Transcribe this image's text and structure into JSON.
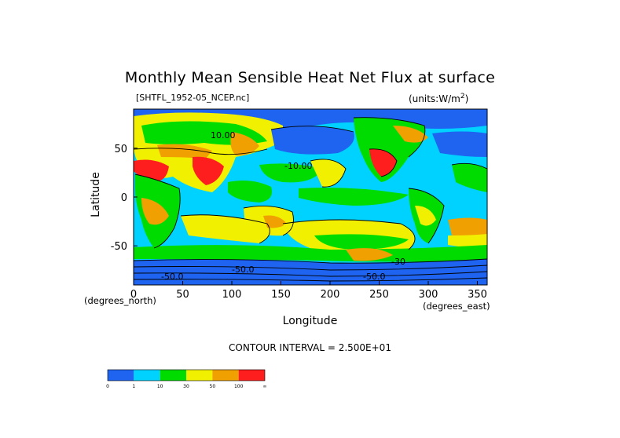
{
  "chart_data": {
    "type": "heatmap",
    "title": "Monthly Mean Sensible Heat Net Flux at surface",
    "file_tag": "[SHTFL_1952-05_NCEP.nc]",
    "units": "(units:W/m^2)",
    "xlabel": "Longitude",
    "ylabel": "Latitude",
    "x_unit_label": "(degrees_east)",
    "y_unit_label": "(degrees_north)",
    "xlim": [
      0,
      360
    ],
    "ylim": [
      -90,
      90
    ],
    "x_ticks": [
      "0",
      "50",
      "100",
      "150",
      "200",
      "250",
      "300",
      "350"
    ],
    "y_ticks": [
      "50",
      "0",
      "-50"
    ],
    "contour_interval": "CONTOUR INTERVAL = 2.500E+01",
    "contour_labels": [
      "10.00",
      "-10.00",
      "-50.0",
      "-50.0",
      "-50.0",
      "-30"
    ],
    "colorbar": {
      "colors": [
        "#1e64f0",
        "#00d2ff",
        "#00dc00",
        "#f0f000",
        "#f0a000",
        "#ff1e1e"
      ],
      "labels": [
        "0",
        "1",
        "10",
        "30",
        "50",
        "100",
        "∞"
      ]
    }
  }
}
